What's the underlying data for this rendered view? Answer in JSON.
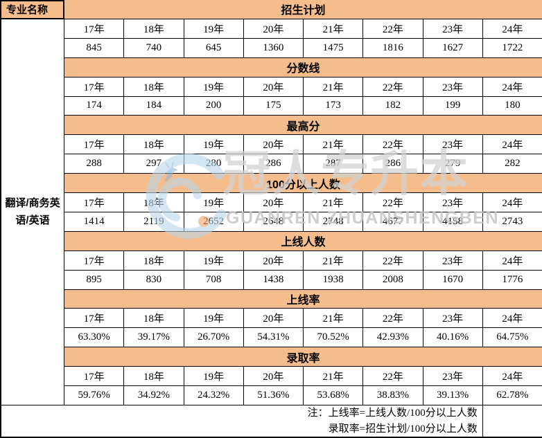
{
  "chart_data": {
    "type": "table",
    "categories": [
      "17年",
      "18年",
      "19年",
      "20年",
      "21年",
      "22年",
      "23年",
      "24年"
    ],
    "series": [
      {
        "name": "招生计划",
        "values": [
          845,
          740,
          645,
          1360,
          1475,
          1816,
          1627,
          1722
        ]
      },
      {
        "name": "分数线",
        "values": [
          174,
          184,
          200,
          175,
          173,
          182,
          199,
          180
        ]
      },
      {
        "name": "最高分",
        "values": [
          288,
          297,
          280,
          286,
          287,
          286,
          279,
          282
        ]
      },
      {
        "name": "100分以上人数",
        "values": [
          1414,
          2119,
          2652,
          2648,
          2748,
          4677,
          4158,
          2743
        ]
      },
      {
        "name": "上线人数",
        "values": [
          895,
          830,
          708,
          1438,
          1938,
          2008,
          1670,
          1776
        ]
      },
      {
        "name": "上线率",
        "unit": "%",
        "values": [
          63.3,
          39.17,
          26.7,
          54.31,
          70.52,
          42.93,
          40.16,
          64.75
        ]
      },
      {
        "name": "录取率",
        "unit": "%",
        "values": [
          59.76,
          34.92,
          24.32,
          51.36,
          53.68,
          38.83,
          39.13,
          62.78
        ]
      }
    ],
    "row_group_label": "翻译/商务英语/英语",
    "notes": [
      "上线率=上线人数/100分以上人数",
      "录取率=招生计划/100分以上人数"
    ]
  },
  "table": {
    "major_header": "专业名称",
    "major_name": "翻译/商务英语/英语",
    "years": [
      "17年",
      "18年",
      "19年",
      "20年",
      "21年",
      "22年",
      "23年",
      "24年"
    ],
    "sections": [
      {
        "title": "招生计划",
        "values": [
          "845",
          "740",
          "645",
          "1360",
          "1475",
          "1816",
          "1627",
          "1722"
        ]
      },
      {
        "title": "分数线",
        "values": [
          "174",
          "184",
          "200",
          "175",
          "173",
          "182",
          "199",
          "180"
        ]
      },
      {
        "title": "最高分",
        "values": [
          "288",
          "297",
          "280",
          "286",
          "287",
          "286",
          "279",
          "282"
        ]
      },
      {
        "title": "100分以上人数",
        "values": [
          "1414",
          "2119",
          "2652",
          "2648",
          "2748",
          "4677",
          "4158",
          "2743"
        ]
      },
      {
        "title": "上线人数",
        "values": [
          "895",
          "830",
          "708",
          "1438",
          "1938",
          "2008",
          "1670",
          "1776"
        ]
      },
      {
        "title": "上线率",
        "values": [
          "63.30%",
          "39.17%",
          "26.70%",
          "54.31%",
          "70.52%",
          "42.93%",
          "40.16%",
          "64.75%"
        ]
      },
      {
        "title": "录取率",
        "values": [
          "59.76%",
          "34.92%",
          "24.32%",
          "51.36%",
          "53.68%",
          "38.83%",
          "39.13%",
          "62.78%"
        ]
      }
    ],
    "notes": [
      "注：上线率=上线人数/100分以上人数",
      "录取率=招生计划/100分以上人数"
    ]
  },
  "watermark": {
    "logo": "guanren-bird-logo",
    "title": "冠人专升本",
    "subtitle": "GUANREN ZHUANSHENGBEN"
  },
  "colors": {
    "band": "#F5BD8C",
    "border": "#000000",
    "watermark_blue": "#B9D7E8",
    "watermark_orange": "#F2A36A",
    "watermark_gray": "#D1D1D1"
  }
}
